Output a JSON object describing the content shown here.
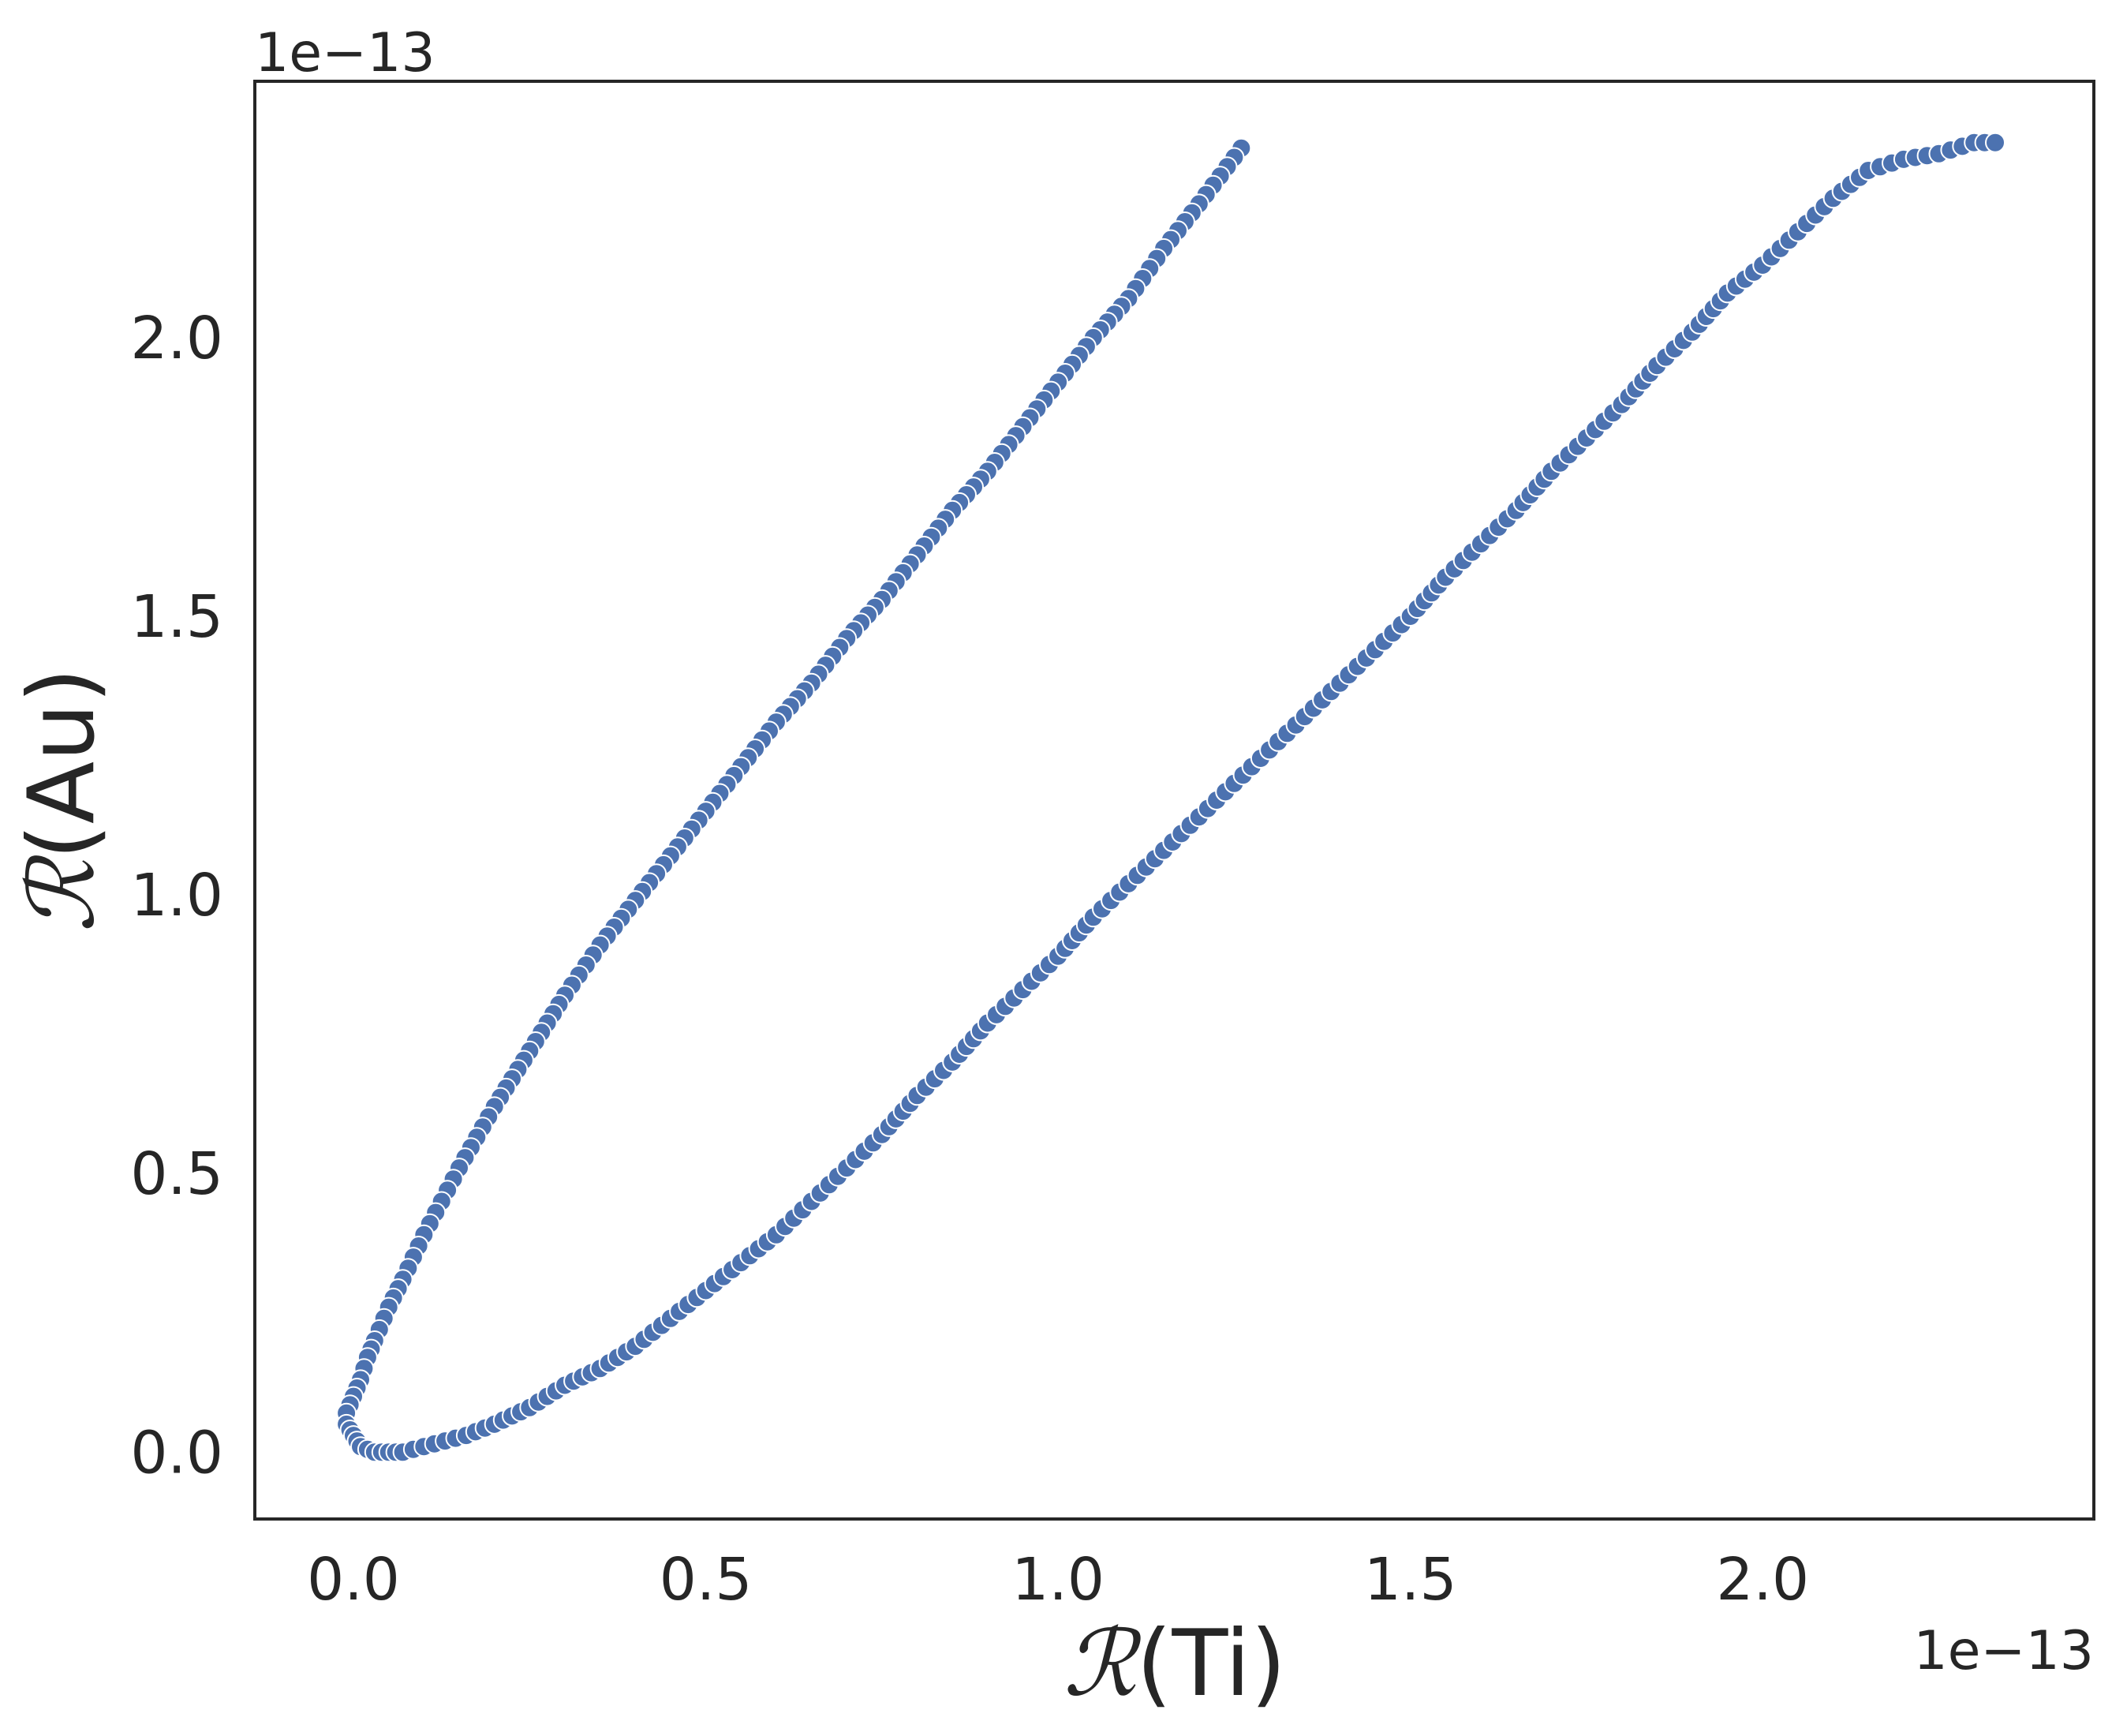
{
  "chart_data": {
    "type": "scatter",
    "title": "",
    "xlabel_symbol": "ℛ",
    "xlabel_text": "(Ti)",
    "ylabel_symbol": "ℛ",
    "ylabel_text": "(Au)",
    "x_offset_text": "1e−13",
    "y_offset_text": "1e−13",
    "xlim": [
      -0.14,
      2.47
    ],
    "ylim": [
      -0.12,
      2.46
    ],
    "xticks": [
      0.0,
      0.5,
      1.0,
      1.5,
      2.0
    ],
    "xtick_labels": [
      "0.0",
      "0.5",
      "1.0",
      "1.5",
      "2.0"
    ],
    "yticks": [
      0.0,
      0.5,
      1.0,
      1.5,
      2.0
    ],
    "ytick_labels": [
      "0.0",
      "0.5",
      "1.0",
      "1.5",
      "2.0"
    ],
    "grid": false,
    "legend": null,
    "marker_color": "#4c72b0",
    "marker_edge_color": "#ffffff",
    "scale_factor": 1e-13,
    "series": [
      {
        "x": [
          1.26,
          1.2,
          1.15,
          1.1,
          1.05,
          1.0,
          0.95,
          0.9,
          0.85,
          0.8,
          0.75,
          0.7,
          0.65,
          0.6,
          0.55,
          0.5,
          0.45,
          0.4,
          0.35,
          0.3,
          0.25,
          0.2,
          0.15,
          0.1,
          0.07,
          0.05,
          0.03,
          0.02,
          0.01,
          0.0,
          -0.01,
          -0.01,
          0.0,
          0.01,
          0.03,
          0.05,
          0.07,
          0.1,
          0.13,
          0.16,
          0.2,
          0.25,
          0.3,
          0.35,
          0.4,
          0.45,
          0.5,
          0.55,
          0.6,
          0.65,
          0.7,
          0.75,
          0.8,
          0.85,
          0.9,
          0.95,
          1.0,
          1.05,
          1.1,
          1.15,
          1.2,
          1.25,
          1.3,
          1.35,
          1.4,
          1.45,
          1.5,
          1.55,
          1.6,
          1.65,
          1.7,
          1.75,
          1.8,
          1.85,
          1.9,
          1.95,
          2.0,
          2.05,
          2.1,
          2.15,
          2.2,
          2.25,
          2.3,
          2.33
        ],
        "y": [
          2.34,
          2.24,
          2.16,
          2.07,
          2.0,
          1.92,
          1.84,
          1.76,
          1.69,
          1.61,
          1.53,
          1.46,
          1.38,
          1.31,
          1.23,
          1.15,
          1.07,
          0.99,
          0.91,
          0.82,
          0.72,
          0.62,
          0.51,
          0.39,
          0.31,
          0.26,
          0.2,
          0.17,
          0.13,
          0.1,
          0.07,
          0.05,
          0.03,
          0.01,
          0.0,
          0.0,
          0.0,
          0.01,
          0.02,
          0.03,
          0.05,
          0.08,
          0.12,
          0.15,
          0.19,
          0.24,
          0.29,
          0.34,
          0.39,
          0.45,
          0.51,
          0.57,
          0.64,
          0.7,
          0.77,
          0.83,
          0.89,
          0.96,
          1.02,
          1.08,
          1.14,
          1.2,
          1.26,
          1.32,
          1.38,
          1.44,
          1.5,
          1.57,
          1.63,
          1.69,
          1.76,
          1.82,
          1.88,
          1.95,
          2.01,
          2.08,
          2.13,
          2.19,
          2.25,
          2.3,
          2.32,
          2.33,
          2.35,
          2.35
        ]
      }
    ]
  }
}
